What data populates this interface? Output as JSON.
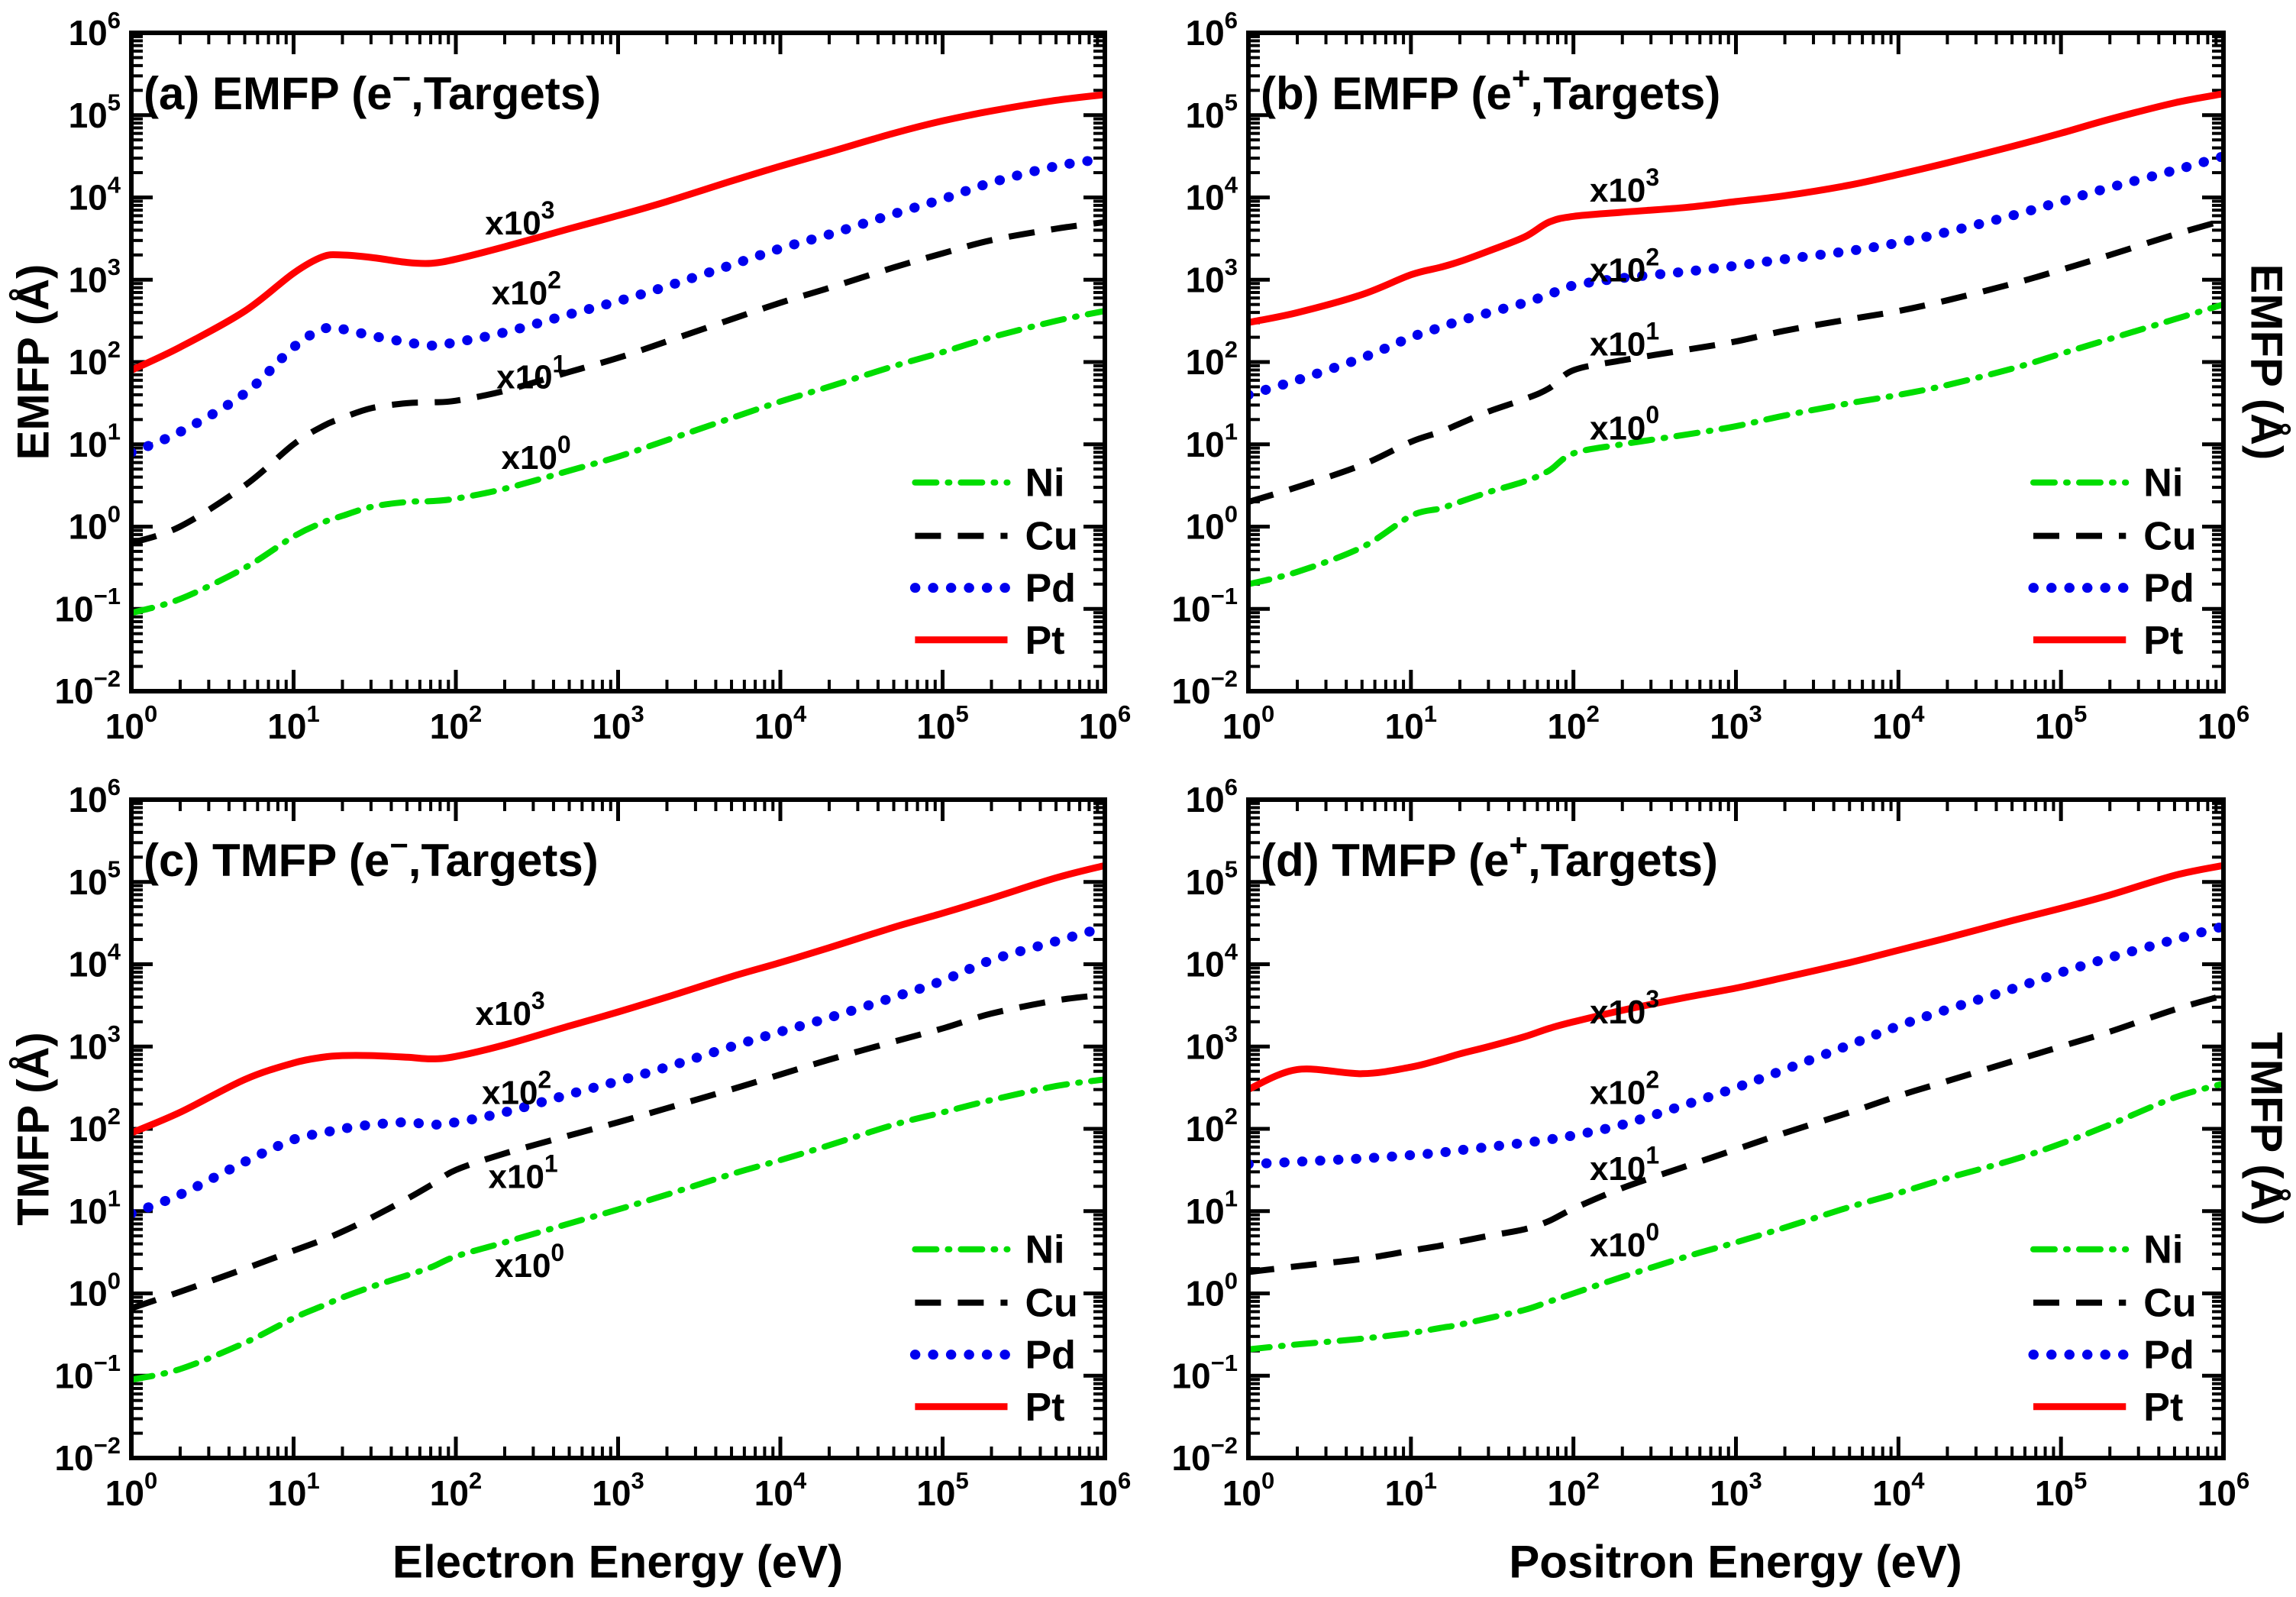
{
  "figure": {
    "background": "#ffffff"
  },
  "axis_titles": {
    "left_top": "EMFP (Å)",
    "left_bottom": "TMFP (Å)",
    "right_top": "EMFP (Å)",
    "right_bottom": "TMFP (Å)",
    "bottom_left": "Electron Energy (eV)",
    "bottom_right": "Positron Energy (eV)"
  },
  "colors": {
    "Ni": "#00dd00",
    "Cu": "#000000",
    "Pd": "#0000ee",
    "Pt": "#ff0000",
    "axis": "#000000"
  },
  "legend": {
    "position": "lower-right-inside",
    "entries": [
      {
        "label": "Ni",
        "style": "dashdot",
        "color_key": "Ni"
      },
      {
        "label": "Cu",
        "style": "dashed",
        "color_key": "Cu"
      },
      {
        "label": "Pd",
        "style": "dotted",
        "color_key": "Pd"
      },
      {
        "label": "Pt",
        "style": "solid",
        "color_key": "Pt"
      }
    ]
  },
  "ticks": {
    "x_exponents": [
      0,
      1,
      2,
      3,
      4,
      5,
      6
    ],
    "y_exponents": [
      6,
      5,
      4,
      3,
      2,
      1,
      0,
      -1,
      -2
    ]
  },
  "chart_data": [
    {
      "id": "a",
      "type": "line",
      "log_log": true,
      "title": {
        "pre": "(a) EMFP (e",
        "sup": "−",
        "post": ",Targets)"
      },
      "xlabel": "Electron Energy (eV)",
      "ylabel": "EMFP (Å)",
      "xlim": [
        1,
        1000000
      ],
      "ylim": [
        0.01,
        1000000
      ],
      "grid": false,
      "note": "plotted value = MFP(Å) × multiplier",
      "log10_E": [
        0,
        0.3,
        0.7,
        1,
        1.18,
        1.3,
        1.48,
        1.7,
        1.85,
        2,
        2.3,
        2.7,
        3,
        3.3,
        3.7,
        4,
        4.3,
        4.7,
        5,
        5.3,
        5.7,
        6
      ],
      "multiplier_labels": [
        {
          "text": "x10",
          "exp": "3",
          "log_x": 2.18,
          "log_y": 3.55
        },
        {
          "text": "x10",
          "exp": "2",
          "log_x": 2.22,
          "log_y": 2.7
        },
        {
          "text": "x10",
          "exp": "1",
          "log_x": 2.25,
          "log_y": 1.68
        },
        {
          "text": "x10",
          "exp": "0",
          "log_x": 2.28,
          "log_y": 0.7
        }
      ],
      "series": [
        {
          "name": "Ni",
          "multiplier": 1,
          "style": "dashdot",
          "log10_scaled_mfp": [
            -1.05,
            -0.88,
            -0.5,
            -0.12,
            0.05,
            0.13,
            0.24,
            0.3,
            0.31,
            0.34,
            0.46,
            0.68,
            0.85,
            1.05,
            1.32,
            1.52,
            1.7,
            1.95,
            2.12,
            2.3,
            2.5,
            2.62
          ]
        },
        {
          "name": "Cu",
          "multiplier": 10,
          "style": "dashed",
          "log10_scaled_mfp": [
            -0.2,
            0,
            0.5,
            1,
            1.22,
            1.32,
            1.44,
            1.5,
            1.51,
            1.53,
            1.65,
            1.88,
            2.05,
            2.25,
            2.52,
            2.72,
            2.9,
            3.15,
            3.32,
            3.48,
            3.62,
            3.7
          ]
        },
        {
          "name": "Pd",
          "multiplier": 100,
          "style": "dotted",
          "log10_scaled_mfp": [
            0.9,
            1.15,
            1.62,
            2.18,
            2.4,
            2.4,
            2.32,
            2.24,
            2.2,
            2.24,
            2.36,
            2.58,
            2.74,
            2.92,
            3.18,
            3.38,
            3.55,
            3.8,
            3.98,
            4.18,
            4.38,
            4.47
          ]
        },
        {
          "name": "Pt",
          "multiplier": 1000,
          "style": "solid",
          "log10_scaled_mfp": [
            1.9,
            2.18,
            2.62,
            3.08,
            3.28,
            3.3,
            3.27,
            3.21,
            3.2,
            3.25,
            3.4,
            3.62,
            3.78,
            3.95,
            4.2,
            4.38,
            4.55,
            4.78,
            4.93,
            5.05,
            5.18,
            5.25
          ]
        }
      ]
    },
    {
      "id": "b",
      "type": "line",
      "log_log": true,
      "title": {
        "pre": "(b) EMFP (e",
        "sup": "+",
        "post": ",Targets)"
      },
      "xlabel": "Positron Energy (eV)",
      "ylabel": "EMFP (Å)",
      "xlim": [
        1,
        1000000
      ],
      "ylim": [
        0.01,
        1000000
      ],
      "grid": false,
      "note": "plotted value = MFP(Å) × multiplier",
      "log10_E": [
        0,
        0.3,
        0.7,
        1,
        1.18,
        1.3,
        1.48,
        1.7,
        1.85,
        2,
        2.3,
        2.7,
        3,
        3.3,
        3.7,
        4,
        4.3,
        4.7,
        5,
        5.3,
        5.7,
        6
      ],
      "multiplier_labels": [
        {
          "text": "x10",
          "exp": "3",
          "log_x": 2.1,
          "log_y": 3.95
        },
        {
          "text": "x10",
          "exp": "2",
          "log_x": 2.1,
          "log_y": 2.98
        },
        {
          "text": "x10",
          "exp": "1",
          "log_x": 2.1,
          "log_y": 2.08
        },
        {
          "text": "x10",
          "exp": "0",
          "log_x": 2.1,
          "log_y": 1.06
        }
      ],
      "series": [
        {
          "name": "Ni",
          "multiplier": 1,
          "style": "dashdot",
          "log10_scaled_mfp": [
            -0.7,
            -0.55,
            -0.25,
            0.13,
            0.22,
            0.3,
            0.42,
            0.55,
            0.68,
            0.89,
            1,
            1.12,
            1.22,
            1.35,
            1.5,
            1.6,
            1.72,
            1.92,
            2.1,
            2.28,
            2.52,
            2.7
          ]
        },
        {
          "name": "Cu",
          "multiplier": 10,
          "style": "dashed",
          "log10_scaled_mfp": [
            0.3,
            0.48,
            0.75,
            1.03,
            1.15,
            1.25,
            1.4,
            1.55,
            1.68,
            1.9,
            2.02,
            2.15,
            2.25,
            2.38,
            2.52,
            2.62,
            2.75,
            2.95,
            3.12,
            3.3,
            3.55,
            3.72
          ]
        },
        {
          "name": "Pd",
          "multiplier": 100,
          "style": "dotted",
          "log10_scaled_mfp": [
            1.6,
            1.78,
            2.05,
            2.3,
            2.42,
            2.5,
            2.6,
            2.72,
            2.82,
            2.93,
            3.02,
            3.1,
            3.17,
            3.25,
            3.35,
            3.45,
            3.58,
            3.78,
            3.95,
            4.12,
            4.33,
            4.5
          ]
        },
        {
          "name": "Pt",
          "multiplier": 1000,
          "style": "solid",
          "log10_scaled_mfp": [
            2.48,
            2.6,
            2.82,
            3.06,
            3.15,
            3.22,
            3.35,
            3.52,
            3.7,
            3.77,
            3.82,
            3.88,
            3.95,
            4.02,
            4.15,
            4.28,
            4.42,
            4.62,
            4.78,
            4.95,
            5.15,
            5.26
          ]
        }
      ]
    },
    {
      "id": "c",
      "type": "line",
      "log_log": true,
      "title": {
        "pre": "(c) TMFP (e",
        "sup": "−",
        "post": ",Targets)"
      },
      "xlabel": "Electron Energy (eV)",
      "ylabel": "TMFP (Å)",
      "xlim": [
        1,
        1000000
      ],
      "ylim": [
        0.01,
        1000000
      ],
      "grid": false,
      "note": "plotted value = MFP(Å) × multiplier",
      "log10_E": [
        0,
        0.3,
        0.7,
        1,
        1.18,
        1.3,
        1.48,
        1.7,
        1.85,
        2,
        2.3,
        2.7,
        3,
        3.3,
        3.7,
        4,
        4.3,
        4.7,
        5,
        5.3,
        5.7,
        6
      ],
      "multiplier_labels": [
        {
          "text": "x10",
          "exp": "3",
          "log_x": 2.12,
          "log_y": 3.26
        },
        {
          "text": "x10",
          "exp": "2",
          "log_x": 2.16,
          "log_y": 2.3
        },
        {
          "text": "x10",
          "exp": "1",
          "log_x": 2.2,
          "log_y": 1.28
        },
        {
          "text": "x10",
          "exp": "0",
          "log_x": 2.24,
          "log_y": 0.2
        }
      ],
      "series": [
        {
          "name": "Ni",
          "multiplier": 1,
          "style": "dashdot",
          "log10_scaled_mfp": [
            -1.05,
            -0.92,
            -0.6,
            -0.3,
            -0.15,
            -0.05,
            0.08,
            0.22,
            0.32,
            0.45,
            0.62,
            0.85,
            1.02,
            1.2,
            1.45,
            1.62,
            1.8,
            2.05,
            2.2,
            2.35,
            2.52,
            2.6
          ]
        },
        {
          "name": "Cu",
          "multiplier": 10,
          "style": "dashed",
          "log10_scaled_mfp": [
            -0.18,
            0.02,
            0.3,
            0.52,
            0.65,
            0.75,
            0.92,
            1.15,
            1.32,
            1.5,
            1.7,
            1.92,
            2.08,
            2.25,
            2.48,
            2.66,
            2.84,
            3.06,
            3.22,
            3.4,
            3.56,
            3.63
          ]
        },
        {
          "name": "Pd",
          "multiplier": 100,
          "style": "dotted",
          "log10_scaled_mfp": [
            0.97,
            1.2,
            1.6,
            1.87,
            1.95,
            2,
            2.05,
            2.08,
            2.05,
            2.08,
            2.2,
            2.42,
            2.58,
            2.75,
            3,
            3.18,
            3.35,
            3.6,
            3.8,
            4.05,
            4.28,
            4.45
          ]
        },
        {
          "name": "Pt",
          "multiplier": 1000,
          "style": "solid",
          "log10_scaled_mfp": [
            1.95,
            2.2,
            2.6,
            2.8,
            2.87,
            2.89,
            2.89,
            2.87,
            2.85,
            2.88,
            3.02,
            3.25,
            3.42,
            3.6,
            3.85,
            4.02,
            4.2,
            4.45,
            4.62,
            4.8,
            5.05,
            5.2
          ]
        }
      ]
    },
    {
      "id": "d",
      "type": "line",
      "log_log": true,
      "title": {
        "pre": "(d) TMFP (e",
        "sup": "+",
        "post": ",Targets)"
      },
      "xlabel": "Positron Energy (eV)",
      "ylabel": "TMFP (Å)",
      "xlim": [
        1,
        1000000
      ],
      "ylim": [
        0.01,
        1000000
      ],
      "grid": false,
      "note": "plotted value = MFP(Å) × multiplier",
      "log10_E": [
        0,
        0.3,
        0.7,
        1,
        1.18,
        1.3,
        1.48,
        1.7,
        1.85,
        2,
        2.3,
        2.7,
        3,
        3.3,
        3.7,
        4,
        4.3,
        4.7,
        5,
        5.3,
        5.7,
        6
      ],
      "multiplier_labels": [
        {
          "text": "x10",
          "exp": "3",
          "log_x": 2.1,
          "log_y": 3.28
        },
        {
          "text": "x10",
          "exp": "2",
          "log_x": 2.1,
          "log_y": 2.3
        },
        {
          "text": "x10",
          "exp": "1",
          "log_x": 2.1,
          "log_y": 1.38
        },
        {
          "text": "x10",
          "exp": "0",
          "log_x": 2.1,
          "log_y": 0.45
        }
      ],
      "series": [
        {
          "name": "Ni",
          "multiplier": 1,
          "style": "dashdot",
          "log10_scaled_mfp": [
            -0.68,
            -0.62,
            -0.55,
            -0.48,
            -0.42,
            -0.38,
            -0.3,
            -0.2,
            -0.1,
            0,
            0.2,
            0.45,
            0.62,
            0.8,
            1.05,
            1.22,
            1.4,
            1.62,
            1.82,
            2.05,
            2.38,
            2.55
          ]
        },
        {
          "name": "Cu",
          "multiplier": 10,
          "style": "dashed",
          "log10_scaled_mfp": [
            0.26,
            0.33,
            0.42,
            0.52,
            0.58,
            0.63,
            0.7,
            0.78,
            0.88,
            1.03,
            1.28,
            1.55,
            1.75,
            1.95,
            2.2,
            2.4,
            2.58,
            2.82,
            3,
            3.18,
            3.45,
            3.62
          ]
        },
        {
          "name": "Pd",
          "multiplier": 100,
          "style": "dotted",
          "log10_scaled_mfp": [
            1.57,
            1.6,
            1.64,
            1.68,
            1.71,
            1.74,
            1.78,
            1.83,
            1.87,
            1.92,
            2.05,
            2.3,
            2.5,
            2.72,
            3.02,
            3.25,
            3.45,
            3.7,
            3.9,
            4.08,
            4.3,
            4.46
          ]
        },
        {
          "name": "Pt",
          "multiplier": 1000,
          "style": "solid",
          "log10_scaled_mfp": [
            2.48,
            2.72,
            2.67,
            2.75,
            2.84,
            2.91,
            3,
            3.12,
            3.22,
            3.3,
            3.44,
            3.6,
            3.71,
            3.84,
            4.02,
            4.17,
            4.32,
            4.53,
            4.68,
            4.84,
            5.08,
            5.2
          ]
        }
      ]
    }
  ]
}
